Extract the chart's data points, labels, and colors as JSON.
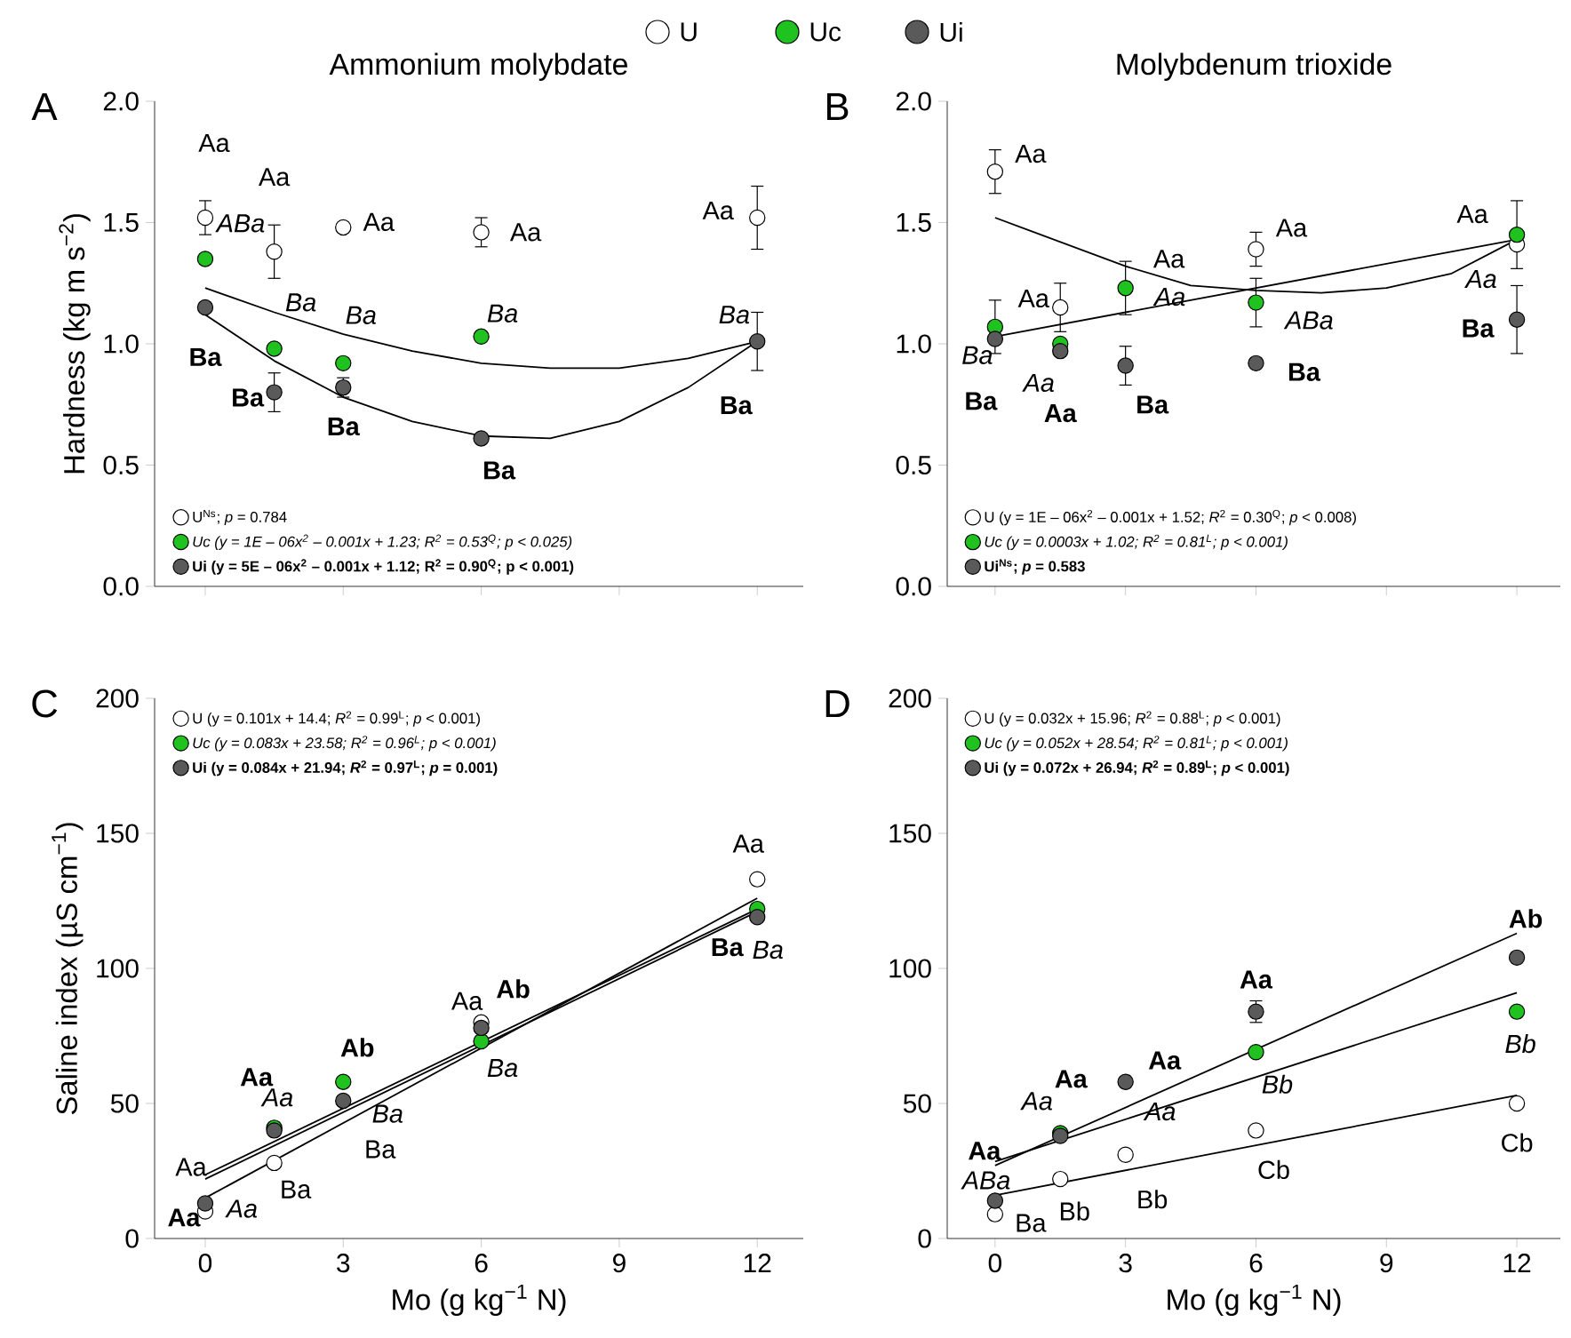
{
  "chart_data": [
    {
      "type": "scatter",
      "title": "Ammonium molybdate",
      "ylabel": "Hardness (kg m s$^{−2}$)",
      "x": [
        0,
        1.5,
        3,
        6,
        12
      ],
      "xlim": [
        -1.1,
        13
      ],
      "xticks": [
        0,
        3,
        6,
        9,
        12
      ],
      "ylim": [
        0,
        2
      ],
      "yticks": [
        {
          "value": 0,
          "label": "0.0"
        },
        {
          "value": 0.5,
          "label": "0.5"
        },
        {
          "value": 1,
          "label": "1.0"
        },
        {
          "value": 1.5,
          "label": "1.5"
        },
        {
          "value": 2,
          "label": "2.0"
        }
      ],
      "tick_labels": "y",
      "legend": "bottom left",
      "annotations": [
        "A",
        "U",
        "Uc",
        "Ui",
        "*Ba*"
      ],
      "series": [
        {
          "name": "U$^{Ns}$; *p* = 0.784",
          "marker": "circle",
          "color": "#ffffff",
          "values": [
            1.52,
            1.38,
            1.48,
            1.46,
            1.52
          ],
          "errors": [
            0.07,
            0.11,
            null,
            0.06,
            0.13
          ],
          "value_labels": [
            "Aa",
            "Aa",
            "Aa",
            "Aa",
            "Aa"
          ]
        },
        {
          "name": "Uc (y = 1E – 06x$^{2}$ – 0.001x + 1.23; R$^{2}$ = 0.53$^{Q}$; p < 0.025)",
          "marker": "circle",
          "color": "#1fc21f",
          "values": [
            1.35,
            0.98,
            0.92,
            1.03,
            null
          ],
          "value_labels": [
            "ABa",
            "Ba",
            "Ba",
            "Ba",
            null
          ]
        },
        {
          "name": "Ui (y = 5E – 06x$^{2}$ – 0.001x + 1.12; R$^{2}$ = 0.90$^{Q}$; p < 0.001)",
          "marker": "circle",
          "color": "#5a5a5a",
          "values": [
            1.15,
            0.8,
            0.82,
            0.61,
            1.01
          ],
          "errors": [
            null,
            0.08,
            0.04,
            null,
            0.12
          ],
          "value_labels": [
            "Ba",
            "Ba",
            "Ba",
            "Ba",
            "Ba"
          ]
        },
        {
          "type": "line",
          "marker": "none",
          "color": "#000000",
          "x": [
            0,
            1.5,
            3,
            4.5,
            6,
            7.5,
            9,
            10.5,
            12
          ],
          "values": [
            1.23,
            1.13,
            1.04,
            0.97,
            0.92,
            0.9,
            0.9,
            0.94,
            1.01
          ]
        },
        {
          "type": "line",
          "marker": "none",
          "color": "#000000",
          "x": [
            0,
            1.5,
            3,
            4.5,
            6,
            7.5,
            9,
            10.5,
            12
          ],
          "values": [
            1.12,
            0.93,
            0.78,
            0.68,
            0.62,
            0.61,
            0.68,
            0.82,
            1.01
          ]
        }
      ]
    },
    {
      "type": "scatter",
      "title": "Molybdenum trioxide",
      "x": [
        0,
        1.5,
        3,
        6,
        12
      ],
      "xlim": [
        -1.1,
        13
      ],
      "xticks": [
        0,
        3,
        6,
        9,
        12
      ],
      "ylim": [
        0,
        2
      ],
      "yticks": [
        {
          "value": 0,
          "label": "0.0"
        },
        {
          "value": 0.5,
          "label": "0.5"
        },
        {
          "value": 1,
          "label": "1.0"
        },
        {
          "value": 1.5,
          "label": "1.5"
        },
        {
          "value": 2,
          "label": "2.0"
        }
      ],
      "tick_labels": "y",
      "legend": "bottom left",
      "annotations": [
        "B",
        "Aa"
      ],
      "series": [
        {
          "name": "U (y = 1E – 06x$^{2}$ – 0.001x + 1.52; *R*$^{2}$ = 0.30$^{Q}$; *p* < 0.008)",
          "marker": "circle",
          "color": "#ffffff",
          "values": [
            1.71,
            1.15,
            null,
            1.39,
            1.41
          ],
          "errors": [
            0.09,
            0.1,
            null,
            0.07,
            null
          ],
          "value_labels": [
            "Aa",
            "Aa",
            null,
            "Aa",
            "Aa"
          ]
        },
        {
          "name": "Uc (y = 0.0003x + 1.02; R$^{2}$ = 0.81$^{L}$; p < 0.001)",
          "marker": "circle",
          "color": "#1fc21f",
          "values": [
            1.07,
            1.0,
            1.23,
            1.17,
            1.45
          ],
          "errors": [
            0.11,
            null,
            0.11,
            0.1,
            0.14
          ],
          "value_labels": [
            "Ba",
            "Aa",
            "Aa",
            "ABa",
            "Aa"
          ]
        },
        {
          "name": "Ui$^{Ns}$; *p* = 0.583",
          "marker": "circle",
          "color": "#5a5a5a",
          "values": [
            1.02,
            0.97,
            0.91,
            0.92,
            1.1
          ],
          "errors": [
            null,
            null,
            0.08,
            null,
            0.14
          ],
          "value_labels": [
            "Ba",
            "Aa",
            "Ba",
            "Ba",
            "Ba"
          ]
        },
        {
          "type": "line",
          "marker": "none",
          "color": "#000000",
          "x": [
            0,
            3,
            4.5,
            6,
            7.5,
            9,
            10.5,
            12
          ],
          "values": [
            1.52,
            1.32,
            1.24,
            1.22,
            1.21,
            1.23,
            1.29,
            1.43
          ]
        },
        {
          "type": "line",
          "marker": "none",
          "color": "#000000",
          "x": [
            0,
            12
          ],
          "values": [
            1.03,
            1.43
          ]
        }
      ]
    },
    {
      "type": "scatter",
      "xlabel": "Mo  (g kg$^{−1}$ N)",
      "ylabel": "Saline index (µS cm$^{−1}$)",
      "x": [
        0,
        1.5,
        3,
        6,
        12
      ],
      "xlim": [
        -1.1,
        13
      ],
      "xticks": [
        0,
        3,
        6,
        9,
        12
      ],
      "ylim": [
        0,
        200
      ],
      "yticks": [
        0,
        50,
        100,
        150,
        200
      ],
      "legend": "top left",
      "annotations": [
        "C",
        "Ba",
        "*Aa*"
      ],
      "series": [
        {
          "name": "U (y = 0.101x + 14.4; *R*$^{2}$ = 0.99$^{L}$; *p* < 0.001)",
          "marker": "circle",
          "color": "#ffffff",
          "values": [
            10,
            28,
            null,
            80,
            133
          ],
          "value_labels": [
            "Aa",
            "Ba",
            null,
            "Aa",
            "Aa"
          ]
        },
        {
          "name": "Uc (y = 0.083x + 23.58; R$^{2}$ = 0.96$^{L}$; p < 0.001)",
          "marker": "circle",
          "color": "#1fc21f",
          "values": [
            null,
            41,
            58,
            73,
            122
          ],
          "value_labels": [
            null,
            "Aa",
            "Ba",
            "Ba",
            "Ba"
          ]
        },
        {
          "name": "Ui (y = 0.084x + 21.94; *R*$^{2}$ = 0.97$^{L}$; *p* = 0.001)",
          "marker": "circle",
          "color": "#5a5a5a",
          "values": [
            13,
            40,
            51,
            78,
            119
          ],
          "value_labels": [
            "Aa",
            "Aa",
            "Ab",
            "Ab",
            "Ba"
          ]
        },
        {
          "type": "line",
          "marker": "none",
          "color": "#000000",
          "x": [
            0,
            12
          ],
          "values": [
            15,
            126
          ]
        },
        {
          "type": "line",
          "marker": "none",
          "color": "#000000",
          "x": [
            0,
            12
          ],
          "values": [
            23.6,
            122
          ]
        },
        {
          "type": "line",
          "marker": "none",
          "color": "#000000",
          "x": [
            0,
            12
          ],
          "values": [
            22,
            121
          ]
        }
      ]
    },
    {
      "type": "scatter",
      "xlabel": "Mo  (g kg$^{−1}$ N)",
      "x": [
        0,
        1.5,
        3,
        6,
        12
      ],
      "xlim": [
        -1.1,
        13
      ],
      "xticks": [
        0,
        3,
        6,
        9,
        12
      ],
      "ylim": [
        0,
        200
      ],
      "yticks": [
        0,
        50,
        100,
        150,
        200
      ],
      "legend": "top left",
      "annotations": [
        "D",
        "*ABa*",
        "*Aa*"
      ],
      "series": [
        {
          "name": "U (y = 0.032x + 15.96; *R*$^{2}$ = 0.88$^{L}$; *p* < 0.001)",
          "marker": "circle",
          "color": "#ffffff",
          "values": [
            9,
            22,
            31,
            40,
            50
          ],
          "value_labels": [
            "Ba",
            "Bb",
            "Bb",
            "Cb",
            "Cb"
          ]
        },
        {
          "name": "Uc (y = 0.052x + 28.54; R$^{2}$ = 0.81$^{L}$; p < 0.001)",
          "marker": "circle",
          "color": "#1fc21f",
          "values": [
            null,
            39,
            null,
            69,
            84
          ],
          "value_labels": [
            null,
            "Aa",
            null,
            "Bb",
            "Bb"
          ]
        },
        {
          "name": "Ui (y = 0.072x + 26.94; *R*$^{2}$ = 0.89$^{L}$; *p* < 0.001)",
          "marker": "circle",
          "color": "#5a5a5a",
          "values": [
            14,
            38,
            58,
            84,
            104
          ],
          "errors": [
            null,
            null,
            null,
            4,
            null
          ],
          "value_labels": [
            "Aa",
            "Aa",
            "Aa",
            "Aa",
            "Ab"
          ]
        },
        {
          "type": "line",
          "marker": "none",
          "color": "#000000",
          "x": [
            0,
            12
          ],
          "values": [
            16,
            53
          ]
        },
        {
          "type": "line",
          "marker": "none",
          "color": "#000000",
          "x": [
            0,
            12
          ],
          "values": [
            28.5,
            91
          ]
        },
        {
          "type": "line",
          "marker": "none",
          "color": "#000000",
          "x": [
            0,
            12
          ],
          "values": [
            27,
            113
          ]
        }
      ]
    }
  ]
}
